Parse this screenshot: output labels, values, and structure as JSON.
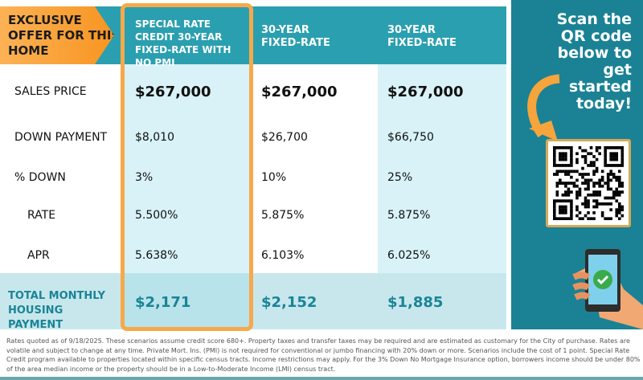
{
  "header": {
    "exclusive": "EXCLUSIVE OFFER FOR THIS HOME",
    "columns": [
      "SPECIAL RATE CREDIT 30-YEAR FIXED-RATE WITH NO PMI",
      "30-YEAR FIXED-RATE",
      "30-YEAR FIXED-RATE"
    ]
  },
  "rows": [
    {
      "label": "SALES PRICE",
      "values": [
        "$267,000",
        "$267,000",
        "$267,000"
      ]
    },
    {
      "label": "DOWN PAYMENT",
      "values": [
        "$8,010",
        "$26,700",
        "$66,750"
      ]
    },
    {
      "label": "% DOWN",
      "values": [
        "3%",
        "10%",
        "25%"
      ]
    },
    {
      "label": "RATE",
      "values": [
        "5.500%",
        "5.875%",
        "5.875%"
      ]
    },
    {
      "label": "APR",
      "values": [
        "5.638%",
        "6.103%",
        "6.025%"
      ]
    }
  ],
  "total": {
    "label": "TOTAL MONTHLY HOUSING PAYMENT",
    "values": [
      "$2,171",
      "$2,152",
      "$1,885"
    ]
  },
  "cta": {
    "text": "Scan the QR code below to get started today!"
  },
  "colors": {
    "teal": "#2a9fb0",
    "dark_teal": "#1a8294",
    "orange": "#f7931e",
    "light_blue": "#d8f2f7"
  },
  "footer": "Rates quoted as of 9/18/2025. These scenarios assume credit score 680+. Property taxes and transfer taxes may be required and are estimated as customary for the City of purchase. Rates are volatile and subject to change at any time. Private Mort. Ins. (PMI) is not required for conventional or jumbo financing with 20% down or more. Scenarios include the cost of 1 point. Special Rate Credit program available to properties located within specific census tracts. Income restrictions may apply. For the 3% Down No Mortgage Insurance option, borrowers income should be under 80% of the area median income or the property should be in a Low-to-Moderate Income (LMI) census tract."
}
